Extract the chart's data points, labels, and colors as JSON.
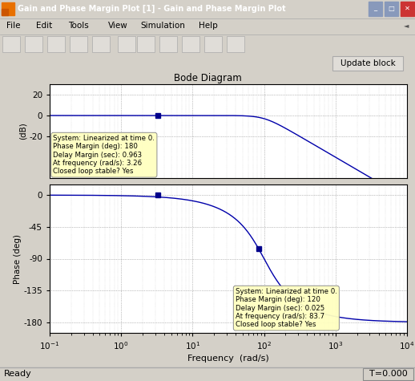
{
  "title": "Bode Diagram",
  "window_title": "Gain and Phase Margin Plot [1] - Gain and Phase Margin Plot",
  "freq_range_log": [
    -1,
    4
  ],
  "mag_ylim": [
    -60,
    30
  ],
  "mag_yticks": [
    20,
    0,
    -20
  ],
  "phase_ylim": [
    -195,
    15
  ],
  "phase_yticks": [
    0,
    -45,
    -90,
    -135,
    -180
  ],
  "xlabel": "Frequency  (rad/s)",
  "mag_ylabel": "(dB)",
  "phase_ylabel": "Phase (deg)",
  "line_color": "#0000aa",
  "marker_color": "#00008B",
  "marker1_freq": 3.26,
  "marker2_freq": 83.7,
  "tooltip1_text": "System: Linearized at time 0.\nPhase Margin (deg): 180\nDelay Margin (sec): 0.963\nAt frequency (rad/s): 3.26\nClosed loop stable? Yes",
  "tooltip2_text": "System: Linearized at time 0.\nPhase Margin (deg): 120\nDelay Margin (sec): 0.025\nAt frequency (rad/s): 83.7\nClosed loop stable? Yes",
  "win_bg": "#d4d0c8",
  "title_bar_color": "#4a6fa5",
  "menu_bg": "#ecebe4",
  "plot_area_bg": "#ecebe4",
  "plot_bg": "#ffffff",
  "grid_major_color": "#888888",
  "grid_minor_color": "#bbbbbb",
  "status_bar_text_left": "Ready",
  "status_bar_text_right": "T=0.000",
  "update_btn_text": "Update block",
  "menu_items": [
    "File",
    "Edit",
    "Tools",
    "View",
    "Simulation",
    "Help"
  ],
  "wn": 100.0,
  "zeta": 0.707
}
